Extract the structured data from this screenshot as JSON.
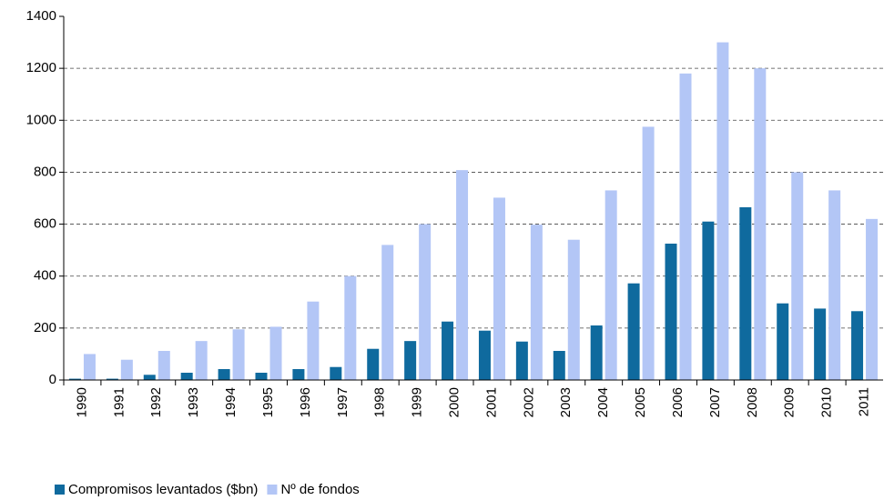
{
  "chart_data": {
    "type": "bar",
    "categories": [
      "1990",
      "1991",
      "1992",
      "1993",
      "1994",
      "1995",
      "1996",
      "1997",
      "1998",
      "1999",
      "2000",
      "2001",
      "2002",
      "2003",
      "2004",
      "2005",
      "2006",
      "2007",
      "2008",
      "2009",
      "2010",
      "2011"
    ],
    "series": [
      {
        "name": "Compromisos levantados ($bn)",
        "color": "#0f6a9e",
        "values": [
          5,
          5,
          20,
          28,
          42,
          28,
          42,
          50,
          120,
          150,
          225,
          190,
          148,
          112,
          210,
          372,
          525,
          610,
          665,
          295,
          275,
          265
        ]
      },
      {
        "name": "Nº de fondos",
        "color": "#b3c6f6",
        "values": [
          100,
          78,
          112,
          150,
          195,
          205,
          302,
          400,
          520,
          600,
          808,
          702,
          598,
          540,
          730,
          975,
          1180,
          1300,
          1200,
          800,
          730,
          620
        ]
      }
    ],
    "ylim": [
      0,
      1400
    ],
    "yticks": [
      0,
      200,
      400,
      600,
      800,
      1000,
      1200,
      1400
    ],
    "grid": true,
    "legend": "bottom"
  }
}
